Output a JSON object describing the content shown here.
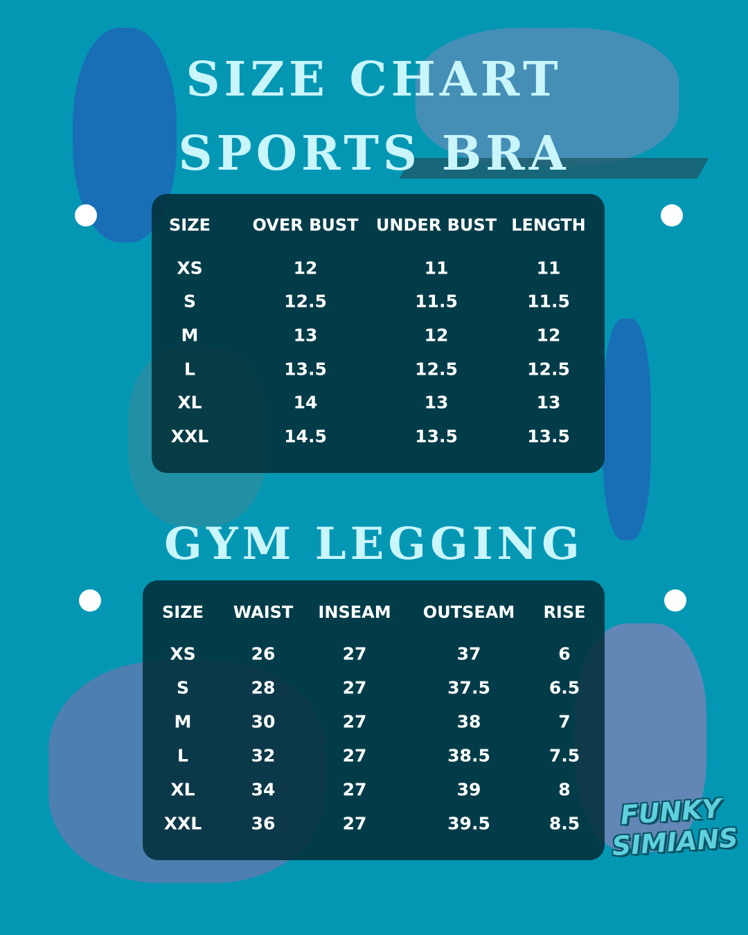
{
  "colors": {
    "background": "#0497b4",
    "panel": "#03303a",
    "title": "#c9f5fc",
    "text": "#ffffff"
  },
  "title_line1": "SIZE CHART",
  "title_line2": "SPORTS BRA",
  "section2_title": "GYM LEGGING",
  "sports_bra": {
    "headers": [
      "SIZE",
      "OVER BUST",
      "UNDER BUST",
      "LENGTH"
    ],
    "rows": [
      [
        "XS",
        "12",
        "11",
        "11"
      ],
      [
        "S",
        "12.5",
        "11.5",
        "11.5"
      ],
      [
        "M",
        "13",
        "12",
        "12"
      ],
      [
        "L",
        "13.5",
        "12.5",
        "12.5"
      ],
      [
        "XL",
        "14",
        "13",
        "13"
      ],
      [
        "XXL",
        "14.5",
        "13.5",
        "13.5"
      ]
    ]
  },
  "gym_legging": {
    "headers": [
      "SIZE",
      "WAIST",
      "INSEAM",
      "OUTSEAM",
      "RISE"
    ],
    "rows": [
      [
        "XS",
        "26",
        "27",
        "37",
        "6"
      ],
      [
        "S",
        "28",
        "27",
        "37.5",
        "6.5"
      ],
      [
        "M",
        "30",
        "27",
        "38",
        "7"
      ],
      [
        "L",
        "32",
        "27",
        "38.5",
        "7.5"
      ],
      [
        "XL",
        "34",
        "27",
        "39",
        "8"
      ],
      [
        "XXL",
        "36",
        "27",
        "39.5",
        "8.5"
      ]
    ]
  },
  "logo": {
    "line1": "FUNKY",
    "line2": "SIMIANS"
  }
}
